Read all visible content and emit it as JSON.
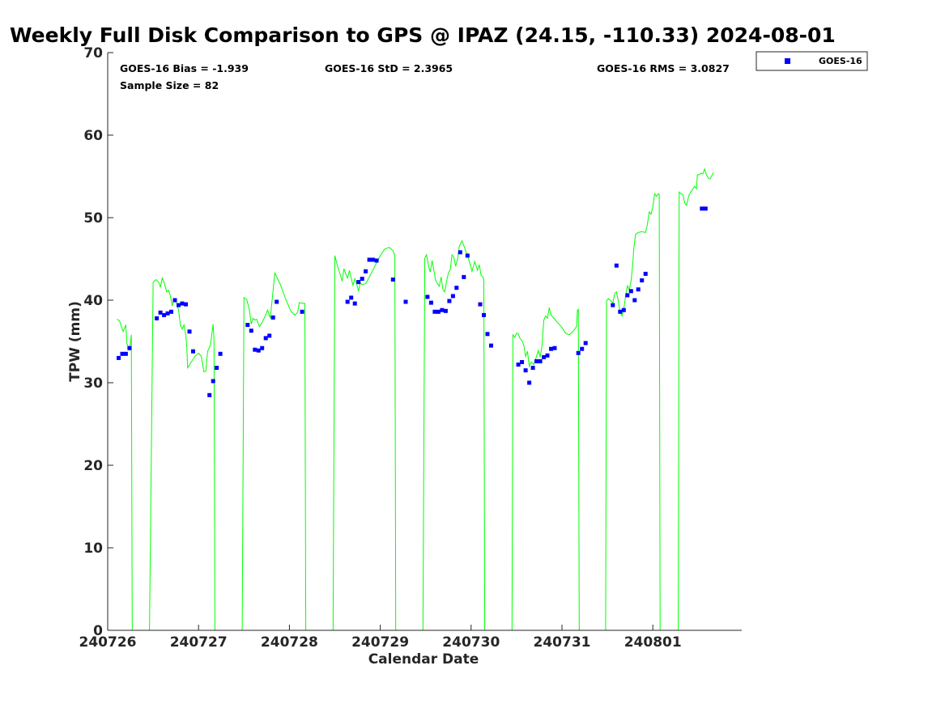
{
  "chart_data": {
    "type": "scatter",
    "title": "Weekly Full Disk Comparison to GPS @ IPAZ (24.15, -110.33) 2024-08-01",
    "xlabel": "Calendar Date",
    "ylabel": "TPW (mm)",
    "x_tick_labels": [
      "240726",
      "240727",
      "240728",
      "240729",
      "240730",
      "240731",
      "240801"
    ],
    "x_axis_units": "days since 2024-07-26 00:00",
    "xlim": [
      0,
      6.98
    ],
    "ylim": [
      0,
      70
    ],
    "y_ticks": [
      0,
      10,
      20,
      30,
      40,
      50,
      60,
      70
    ],
    "grid": false,
    "legend_position": "top-right",
    "legend": [
      "GOES-16"
    ],
    "stats": {
      "bias": "GOES-16 Bias = -1.939",
      "std": "GOES-16 StD = 2.3965",
      "rms": "GOES-16 RMS = 3.0827",
      "sample": "Sample Size = 82"
    },
    "series": [
      {
        "name": "GPS",
        "type": "line",
        "color": "#00ff00",
        "points": [
          [
            0.1,
            37.7
          ],
          [
            0.13,
            37.5
          ],
          [
            0.15,
            36.8
          ],
          [
            0.17,
            36.2
          ],
          [
            0.2,
            37.0
          ],
          [
            0.21,
            34.8
          ],
          [
            0.24,
            33.9
          ],
          [
            0.26,
            35.8
          ],
          [
            0.27,
            0
          ],
          [
            0.46,
            0
          ],
          [
            0.5,
            42.2
          ],
          [
            0.53,
            42.5
          ],
          [
            0.56,
            42.2
          ],
          [
            0.58,
            41.6
          ],
          [
            0.6,
            42.7
          ],
          [
            0.62,
            42.2
          ],
          [
            0.65,
            41.0
          ],
          [
            0.67,
            41.2
          ],
          [
            0.69,
            40.5
          ],
          [
            0.71,
            39.3
          ],
          [
            0.73,
            40.2
          ],
          [
            0.76,
            39.6
          ],
          [
            0.78,
            38.8
          ],
          [
            0.8,
            37.0
          ],
          [
            0.82,
            36.5
          ],
          [
            0.84,
            37.0
          ],
          [
            0.86,
            35.7
          ],
          [
            0.87,
            34.5
          ],
          [
            0.88,
            31.8
          ],
          [
            0.92,
            32.5
          ],
          [
            0.96,
            33.2
          ],
          [
            1.0,
            33.6
          ],
          [
            1.03,
            33.2
          ],
          [
            1.06,
            31.3
          ],
          [
            1.08,
            31.4
          ],
          [
            1.1,
            33.8
          ],
          [
            1.13,
            34.5
          ],
          [
            1.16,
            37.1
          ],
          [
            1.17,
            35.2
          ],
          [
            1.18,
            0
          ],
          [
            1.48,
            0
          ],
          [
            1.5,
            40.3
          ],
          [
            1.53,
            40.1
          ],
          [
            1.56,
            38.8
          ],
          [
            1.58,
            37.1
          ],
          [
            1.6,
            37.8
          ],
          [
            1.62,
            37.6
          ],
          [
            1.64,
            37.7
          ],
          [
            1.67,
            36.8
          ],
          [
            1.7,
            37.3
          ],
          [
            1.73,
            38.0
          ],
          [
            1.76,
            38.8
          ],
          [
            1.79,
            37.8
          ],
          [
            1.84,
            43.3
          ],
          [
            1.9,
            41.9
          ],
          [
            1.96,
            40.1
          ],
          [
            2.02,
            38.6
          ],
          [
            2.06,
            38.2
          ],
          [
            2.09,
            38.5
          ],
          [
            2.11,
            39.7
          ],
          [
            2.17,
            39.6
          ],
          [
            2.18,
            0
          ],
          [
            2.48,
            0
          ],
          [
            2.5,
            45.4
          ],
          [
            2.53,
            44.1
          ],
          [
            2.56,
            43.1
          ],
          [
            2.58,
            42.3
          ],
          [
            2.6,
            43.8
          ],
          [
            2.62,
            43.2
          ],
          [
            2.64,
            42.7
          ],
          [
            2.66,
            43.6
          ],
          [
            2.68,
            42.7
          ],
          [
            2.7,
            41.8
          ],
          [
            2.72,
            42.6
          ],
          [
            2.74,
            42.0
          ],
          [
            2.76,
            41.1
          ],
          [
            2.78,
            42.1
          ],
          [
            2.8,
            41.9
          ],
          [
            2.84,
            42.0
          ],
          [
            2.88,
            42.8
          ],
          [
            2.94,
            44.1
          ],
          [
            3.0,
            45.4
          ],
          [
            3.05,
            46.2
          ],
          [
            3.1,
            46.4
          ],
          [
            3.14,
            46.0
          ],
          [
            3.16,
            45.4
          ],
          [
            3.17,
            0
          ],
          [
            3.47,
            0
          ],
          [
            3.49,
            45.1
          ],
          [
            3.51,
            45.5
          ],
          [
            3.53,
            44.2
          ],
          [
            3.55,
            43.4
          ],
          [
            3.57,
            44.8
          ],
          [
            3.59,
            43.6
          ],
          [
            3.61,
            42.4
          ],
          [
            3.63,
            42.0
          ],
          [
            3.65,
            41.7
          ],
          [
            3.67,
            42.8
          ],
          [
            3.69,
            41.3
          ],
          [
            3.71,
            41.0
          ],
          [
            3.73,
            42.3
          ],
          [
            3.75,
            43.3
          ],
          [
            3.77,
            43.7
          ],
          [
            3.79,
            45.5
          ],
          [
            3.81,
            45.2
          ],
          [
            3.83,
            44.1
          ],
          [
            3.85,
            45.0
          ],
          [
            3.87,
            46.5
          ],
          [
            3.9,
            47.2
          ],
          [
            3.93,
            46.3
          ],
          [
            3.96,
            45.4
          ],
          [
            3.99,
            44.3
          ],
          [
            4.01,
            43.5
          ],
          [
            4.04,
            44.7
          ],
          [
            4.07,
            43.6
          ],
          [
            4.09,
            44.3
          ],
          [
            4.11,
            43.0
          ],
          [
            4.13,
            42.8
          ],
          [
            4.14,
            42.5
          ],
          [
            4.15,
            0
          ],
          [
            4.45,
            0
          ],
          [
            4.46,
            35.8
          ],
          [
            4.48,
            35.5
          ],
          [
            4.5,
            36.0
          ],
          [
            4.52,
            35.9
          ],
          [
            4.54,
            35.3
          ],
          [
            4.56,
            35.1
          ],
          [
            4.58,
            34.5
          ],
          [
            4.6,
            33.2
          ],
          [
            4.62,
            33.8
          ],
          [
            4.64,
            32.0
          ],
          [
            4.66,
            32.5
          ],
          [
            4.69,
            32.2
          ],
          [
            4.72,
            33.2
          ],
          [
            4.74,
            33.9
          ],
          [
            4.76,
            33.1
          ],
          [
            4.78,
            34.5
          ],
          [
            4.8,
            37.6
          ],
          [
            4.82,
            38.1
          ],
          [
            4.84,
            37.8
          ],
          [
            4.86,
            39.1
          ],
          [
            4.88,
            38.2
          ],
          [
            4.92,
            37.7
          ],
          [
            4.96,
            37.2
          ],
          [
            5.0,
            36.7
          ],
          [
            5.04,
            36.0
          ],
          [
            5.08,
            35.8
          ],
          [
            5.12,
            36.2
          ],
          [
            5.16,
            36.8
          ],
          [
            5.17,
            38.8
          ],
          [
            5.18,
            38.9
          ],
          [
            5.19,
            0
          ],
          [
            5.48,
            0
          ],
          [
            5.49,
            39.9
          ],
          [
            5.51,
            40.2
          ],
          [
            5.53,
            40.0
          ],
          [
            5.56,
            39.7
          ],
          [
            5.58,
            40.8
          ],
          [
            5.6,
            41.0
          ],
          [
            5.62,
            39.9
          ],
          [
            5.64,
            38.5
          ],
          [
            5.66,
            38.1
          ],
          [
            5.68,
            38.9
          ],
          [
            5.7,
            40.4
          ],
          [
            5.72,
            41.8
          ],
          [
            5.74,
            41.2
          ],
          [
            5.76,
            42.3
          ],
          [
            5.78,
            44.5
          ],
          [
            5.79,
            46.2
          ],
          [
            5.81,
            48.0
          ],
          [
            5.84,
            48.2
          ],
          [
            5.88,
            48.3
          ],
          [
            5.92,
            48.2
          ],
          [
            5.94,
            49.2
          ],
          [
            5.96,
            50.7
          ],
          [
            5.98,
            50.4
          ],
          [
            6.0,
            51.3
          ],
          [
            6.02,
            52.9
          ],
          [
            6.04,
            52.6
          ],
          [
            6.06,
            52.9
          ],
          [
            6.07,
            52.8
          ],
          [
            6.08,
            0
          ],
          [
            6.28,
            0
          ],
          [
            6.29,
            53.1
          ],
          [
            6.31,
            52.9
          ],
          [
            6.33,
            52.8
          ],
          [
            6.35,
            51.8
          ],
          [
            6.37,
            51.5
          ],
          [
            6.4,
            52.8
          ],
          [
            6.43,
            53.3
          ],
          [
            6.46,
            53.8
          ],
          [
            6.48,
            53.5
          ],
          [
            6.49,
            55.2
          ],
          [
            6.51,
            55.2
          ],
          [
            6.53,
            55.4
          ],
          [
            6.55,
            55.3
          ],
          [
            6.57,
            55.9
          ],
          [
            6.59,
            55.2
          ],
          [
            6.61,
            54.8
          ],
          [
            6.63,
            54.7
          ],
          [
            6.65,
            55.1
          ],
          [
            6.67,
            55.5
          ]
        ]
      },
      {
        "name": "GOES-16",
        "type": "scatter",
        "color": "#0000ff",
        "points": [
          [
            0.12,
            33.0
          ],
          [
            0.16,
            33.5
          ],
          [
            0.2,
            33.5
          ],
          [
            0.24,
            34.2
          ],
          [
            0.54,
            37.8
          ],
          [
            0.58,
            38.5
          ],
          [
            0.62,
            38.2
          ],
          [
            0.66,
            38.4
          ],
          [
            0.7,
            38.6
          ],
          [
            0.74,
            40.0
          ],
          [
            0.78,
            39.4
          ],
          [
            0.82,
            39.6
          ],
          [
            0.86,
            39.5
          ],
          [
            0.9,
            36.2
          ],
          [
            0.94,
            33.8
          ],
          [
            1.12,
            28.5
          ],
          [
            1.16,
            30.2
          ],
          [
            1.2,
            31.8
          ],
          [
            1.24,
            33.5
          ],
          [
            1.54,
            37.0
          ],
          [
            1.58,
            36.3
          ],
          [
            1.62,
            34.0
          ],
          [
            1.66,
            33.9
          ],
          [
            1.7,
            34.2
          ],
          [
            1.74,
            35.4
          ],
          [
            1.78,
            35.7
          ],
          [
            1.82,
            37.9
          ],
          [
            1.86,
            39.8
          ],
          [
            2.14,
            38.6
          ],
          [
            2.64,
            39.8
          ],
          [
            2.68,
            40.3
          ],
          [
            2.72,
            39.6
          ],
          [
            2.76,
            42.2
          ],
          [
            2.8,
            42.6
          ],
          [
            2.84,
            43.5
          ],
          [
            2.88,
            44.9
          ],
          [
            2.92,
            44.9
          ],
          [
            2.96,
            44.8
          ],
          [
            3.14,
            42.5
          ],
          [
            3.28,
            39.8
          ],
          [
            3.52,
            40.4
          ],
          [
            3.56,
            39.7
          ],
          [
            3.6,
            38.6
          ],
          [
            3.64,
            38.6
          ],
          [
            3.68,
            38.8
          ],
          [
            3.72,
            38.7
          ],
          [
            3.76,
            39.9
          ],
          [
            3.8,
            40.5
          ],
          [
            3.84,
            41.5
          ],
          [
            3.88,
            45.8
          ],
          [
            3.92,
            42.8
          ],
          [
            3.96,
            45.4
          ],
          [
            4.1,
            39.5
          ],
          [
            4.14,
            38.2
          ],
          [
            4.18,
            35.9
          ],
          [
            4.22,
            34.5
          ],
          [
            4.52,
            32.2
          ],
          [
            4.56,
            32.5
          ],
          [
            4.6,
            31.5
          ],
          [
            4.64,
            30.0
          ],
          [
            4.68,
            31.8
          ],
          [
            4.72,
            32.6
          ],
          [
            4.76,
            32.6
          ],
          [
            4.8,
            33.1
          ],
          [
            4.84,
            33.3
          ],
          [
            4.88,
            34.1
          ],
          [
            4.92,
            34.2
          ],
          [
            5.18,
            33.6
          ],
          [
            5.22,
            34.1
          ],
          [
            5.26,
            34.8
          ],
          [
            5.56,
            39.4
          ],
          [
            5.6,
            44.2
          ],
          [
            5.64,
            38.6
          ],
          [
            5.68,
            38.8
          ],
          [
            5.72,
            40.6
          ],
          [
            5.76,
            41.1
          ],
          [
            5.8,
            40.0
          ],
          [
            5.84,
            41.3
          ],
          [
            5.88,
            42.4
          ],
          [
            5.92,
            43.2
          ],
          [
            6.54,
            51.1
          ],
          [
            6.58,
            51.1
          ]
        ]
      }
    ]
  }
}
